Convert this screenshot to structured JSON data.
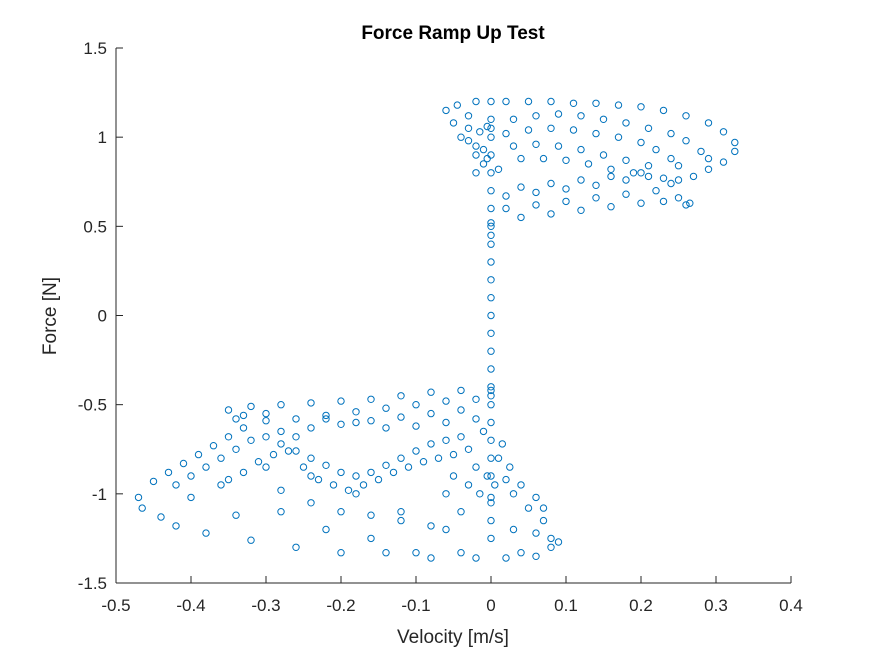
{
  "chart_data": {
    "type": "scatter",
    "title": "Force Ramp Up Test",
    "xlabel": "Velocity [m/s]",
    "ylabel": "Force [N]",
    "xlim": [
      -0.5,
      0.4
    ],
    "ylim": [
      -1.5,
      1.5
    ],
    "xticks": [
      "-0.5",
      "-0.4",
      "-0.3",
      "-0.2",
      "-0.1",
      "0",
      "0.1",
      "0.2",
      "0.3",
      "0.4"
    ],
    "yticks": [
      "-1.5",
      "-1",
      "-0.5",
      "0",
      "0.5",
      "1",
      "1.5"
    ],
    "grid": false,
    "marker": "open-circle",
    "color": "#0072BD",
    "points": [
      [
        0.0,
        -1.02
      ],
      [
        0.0,
        -0.9
      ],
      [
        0.0,
        -0.8
      ],
      [
        0.0,
        -0.7
      ],
      [
        0.0,
        -0.6
      ],
      [
        0.0,
        -0.5
      ],
      [
        0.0,
        -0.4
      ],
      [
        0.0,
        -0.3
      ],
      [
        0.0,
        -0.2
      ],
      [
        0.0,
        -0.1
      ],
      [
        0.0,
        0.0
      ],
      [
        0.0,
        0.1
      ],
      [
        0.0,
        0.2
      ],
      [
        0.0,
        0.3
      ],
      [
        0.0,
        0.4
      ],
      [
        0.0,
        0.5
      ],
      [
        0.0,
        0.6
      ],
      [
        0.0,
        0.7
      ],
      [
        0.0,
        0.8
      ],
      [
        0.0,
        0.9
      ],
      [
        0.0,
        1.0
      ],
      [
        0.0,
        1.05
      ],
      [
        0.0,
        -1.05
      ],
      [
        0.0,
        0.45
      ],
      [
        0.0,
        -0.45
      ],
      [
        0.0,
        0.52
      ],
      [
        0.04,
        0.55
      ],
      [
        0.08,
        0.57
      ],
      [
        0.12,
        0.59
      ],
      [
        0.16,
        0.61
      ],
      [
        0.2,
        0.63
      ],
      [
        0.23,
        0.64
      ],
      [
        0.26,
        0.62
      ],
      [
        0.02,
        0.6
      ],
      [
        0.06,
        0.62
      ],
      [
        0.1,
        0.64
      ],
      [
        0.14,
        0.66
      ],
      [
        0.18,
        0.68
      ],
      [
        0.22,
        0.7
      ],
      [
        0.25,
        0.66
      ],
      [
        0.02,
        0.67
      ],
      [
        0.06,
        0.69
      ],
      [
        0.1,
        0.71
      ],
      [
        0.14,
        0.73
      ],
      [
        0.18,
        0.76
      ],
      [
        0.21,
        0.78
      ],
      [
        0.24,
        0.74
      ],
      [
        0.04,
        0.72
      ],
      [
        0.08,
        0.74
      ],
      [
        0.12,
        0.76
      ],
      [
        0.16,
        0.78
      ],
      [
        0.2,
        0.8
      ],
      [
        0.23,
        0.77
      ],
      [
        0.265,
        0.63
      ],
      [
        -0.06,
        1.15
      ],
      [
        -0.03,
        1.12
      ],
      [
        -0.045,
        1.18
      ],
      [
        -0.02,
        1.2
      ],
      [
        0.0,
        1.2
      ],
      [
        0.02,
        1.2
      ],
      [
        0.05,
        1.2
      ],
      [
        0.08,
        1.2
      ],
      [
        0.11,
        1.19
      ],
      [
        0.14,
        1.19
      ],
      [
        0.17,
        1.18
      ],
      [
        0.2,
        1.17
      ],
      [
        0.23,
        1.15
      ],
      [
        0.26,
        1.12
      ],
      [
        0.29,
        1.08
      ],
      [
        0.31,
        1.03
      ],
      [
        0.325,
        0.97
      ],
      [
        0.325,
        0.92
      ],
      [
        0.31,
        0.86
      ],
      [
        0.29,
        0.82
      ],
      [
        0.27,
        0.78
      ],
      [
        0.25,
        0.76
      ],
      [
        -0.05,
        1.08
      ],
      [
        -0.04,
        1.0
      ],
      [
        -0.02,
        0.95
      ],
      [
        -0.01,
        0.85
      ],
      [
        -0.02,
        0.8
      ],
      [
        -0.03,
        1.05
      ],
      [
        0.0,
        1.1
      ],
      [
        0.03,
        1.1
      ],
      [
        0.06,
        1.12
      ],
      [
        0.09,
        1.13
      ],
      [
        0.12,
        1.12
      ],
      [
        0.15,
        1.1
      ],
      [
        0.18,
        1.08
      ],
      [
        0.21,
        1.05
      ],
      [
        0.24,
        1.02
      ],
      [
        0.26,
        0.98
      ],
      [
        0.28,
        0.92
      ],
      [
        0.29,
        0.88
      ],
      [
        0.02,
        1.02
      ],
      [
        0.05,
        1.04
      ],
      [
        0.08,
        1.05
      ],
      [
        0.11,
        1.04
      ],
      [
        0.14,
        1.02
      ],
      [
        0.17,
        1.0
      ],
      [
        0.2,
        0.97
      ],
      [
        0.22,
        0.93
      ],
      [
        0.24,
        0.88
      ],
      [
        0.25,
        0.84
      ],
      [
        0.03,
        0.95
      ],
      [
        0.06,
        0.96
      ],
      [
        0.09,
        0.95
      ],
      [
        0.12,
        0.93
      ],
      [
        0.15,
        0.9
      ],
      [
        0.18,
        0.87
      ],
      [
        0.21,
        0.84
      ],
      [
        0.04,
        0.88
      ],
      [
        0.07,
        0.88
      ],
      [
        0.1,
        0.87
      ],
      [
        0.13,
        0.85
      ],
      [
        0.16,
        0.82
      ],
      [
        0.19,
        0.8
      ],
      [
        -0.02,
        0.9
      ],
      [
        -0.01,
        0.93
      ],
      [
        -0.03,
        0.98
      ],
      [
        -0.015,
        1.03
      ],
      [
        -0.005,
        0.88
      ],
      [
        0.01,
        0.82
      ],
      [
        -0.005,
        1.06
      ],
      [
        0.0,
        -0.42
      ],
      [
        -0.04,
        -0.42
      ],
      [
        -0.08,
        -0.43
      ],
      [
        -0.12,
        -0.45
      ],
      [
        -0.16,
        -0.47
      ],
      [
        -0.2,
        -0.48
      ],
      [
        -0.24,
        -0.49
      ],
      [
        -0.28,
        -0.5
      ],
      [
        -0.32,
        -0.51
      ],
      [
        -0.35,
        -0.53
      ],
      [
        -0.02,
        -0.47
      ],
      [
        -0.06,
        -0.48
      ],
      [
        -0.1,
        -0.5
      ],
      [
        -0.14,
        -0.52
      ],
      [
        -0.18,
        -0.54
      ],
      [
        -0.22,
        -0.56
      ],
      [
        -0.26,
        -0.58
      ],
      [
        -0.3,
        -0.59
      ],
      [
        -0.34,
        -0.58
      ],
      [
        -0.04,
        -0.53
      ],
      [
        -0.08,
        -0.55
      ],
      [
        -0.12,
        -0.57
      ],
      [
        -0.16,
        -0.59
      ],
      [
        -0.2,
        -0.61
      ],
      [
        -0.24,
        -0.63
      ],
      [
        -0.28,
        -0.65
      ],
      [
        -0.26,
        -0.68
      ],
      [
        -0.02,
        -0.58
      ],
      [
        -0.06,
        -0.6
      ],
      [
        -0.1,
        -0.62
      ],
      [
        -0.14,
        -0.63
      ],
      [
        -0.18,
        -0.6
      ],
      [
        -0.22,
        -0.58
      ],
      [
        -0.3,
        -0.55
      ],
      [
        -0.33,
        -0.56
      ],
      [
        -0.47,
        -1.02
      ],
      [
        -0.465,
        -1.08
      ],
      [
        -0.45,
        -0.93
      ],
      [
        -0.44,
        -1.13
      ],
      [
        -0.43,
        -0.88
      ],
      [
        -0.42,
        -1.18
      ],
      [
        -0.41,
        -0.83
      ],
      [
        -0.4,
        -1.02
      ],
      [
        -0.39,
        -0.78
      ],
      [
        -0.38,
        -1.22
      ],
      [
        -0.37,
        -0.73
      ],
      [
        -0.36,
        -0.95
      ],
      [
        -0.35,
        -0.68
      ],
      [
        -0.34,
        -1.12
      ],
      [
        -0.33,
        -0.63
      ],
      [
        -0.32,
        -1.26
      ],
      [
        -0.3,
        -0.85
      ],
      [
        -0.28,
        -1.1
      ],
      [
        -0.26,
        -1.3
      ],
      [
        -0.24,
        -0.9
      ],
      [
        -0.22,
        -1.2
      ],
      [
        -0.2,
        -1.33
      ],
      [
        -0.18,
        -1.0
      ],
      [
        -0.16,
        -1.25
      ],
      [
        -0.14,
        -1.33
      ],
      [
        -0.12,
        -1.1
      ],
      [
        -0.1,
        -1.33
      ],
      [
        -0.08,
        -1.36
      ],
      [
        -0.06,
        -1.2
      ],
      [
        -0.04,
        -1.33
      ],
      [
        -0.02,
        -1.36
      ],
      [
        0.0,
        -1.25
      ],
      [
        0.02,
        -1.36
      ],
      [
        0.04,
        -1.33
      ],
      [
        0.06,
        -1.35
      ],
      [
        0.08,
        -1.3
      ],
      [
        0.09,
        -1.27
      ],
      [
        -0.42,
        -0.95
      ],
      [
        -0.4,
        -0.9
      ],
      [
        -0.38,
        -0.85
      ],
      [
        -0.36,
        -0.8
      ],
      [
        -0.34,
        -0.75
      ],
      [
        -0.32,
        -0.7
      ],
      [
        -0.3,
        -0.68
      ],
      [
        -0.28,
        -0.72
      ],
      [
        -0.26,
        -0.76
      ],
      [
        -0.24,
        -0.8
      ],
      [
        -0.22,
        -0.84
      ],
      [
        -0.2,
        -0.88
      ],
      [
        -0.18,
        -0.9
      ],
      [
        -0.16,
        -0.88
      ],
      [
        -0.14,
        -0.84
      ],
      [
        -0.12,
        -0.8
      ],
      [
        -0.1,
        -0.76
      ],
      [
        -0.08,
        -0.72
      ],
      [
        -0.06,
        -0.7
      ],
      [
        -0.04,
        -0.68
      ],
      [
        -0.35,
        -0.92
      ],
      [
        -0.33,
        -0.88
      ],
      [
        -0.31,
        -0.82
      ],
      [
        -0.29,
        -0.78
      ],
      [
        -0.27,
        -0.76
      ],
      [
        -0.25,
        -0.85
      ],
      [
        -0.23,
        -0.92
      ],
      [
        -0.21,
        -0.95
      ],
      [
        -0.19,
        -0.98
      ],
      [
        -0.17,
        -0.95
      ],
      [
        -0.15,
        -0.92
      ],
      [
        -0.13,
        -0.88
      ],
      [
        -0.11,
        -0.85
      ],
      [
        -0.09,
        -0.82
      ],
      [
        -0.07,
        -0.8
      ],
      [
        -0.05,
        -0.78
      ],
      [
        -0.03,
        -0.75
      ],
      [
        -0.28,
        -0.98
      ],
      [
        -0.24,
        -1.05
      ],
      [
        -0.2,
        -1.1
      ],
      [
        -0.16,
        -1.12
      ],
      [
        -0.12,
        -1.15
      ],
      [
        -0.08,
        -1.18
      ],
      [
        -0.04,
        -1.1
      ],
      [
        0.0,
        -1.15
      ],
      [
        0.03,
        -1.2
      ],
      [
        0.06,
        -1.22
      ],
      [
        0.08,
        -1.25
      ],
      [
        0.07,
        -1.15
      ],
      [
        0.05,
        -1.08
      ],
      [
        0.03,
        -1.0
      ],
      [
        0.02,
        -0.92
      ],
      [
        0.01,
        -0.8
      ],
      [
        0.015,
        -0.72
      ],
      [
        -0.01,
        -0.65
      ],
      [
        -0.02,
        -0.85
      ],
      [
        -0.03,
        -0.95
      ],
      [
        -0.015,
        -1.0
      ],
      [
        -0.005,
        -0.9
      ],
      [
        0.005,
        -0.95
      ],
      [
        0.025,
        -0.85
      ],
      [
        0.04,
        -0.95
      ],
      [
        0.06,
        -1.02
      ],
      [
        0.07,
        -1.08
      ],
      [
        -0.05,
        -0.9
      ],
      [
        -0.06,
        -1.0
      ]
    ]
  }
}
